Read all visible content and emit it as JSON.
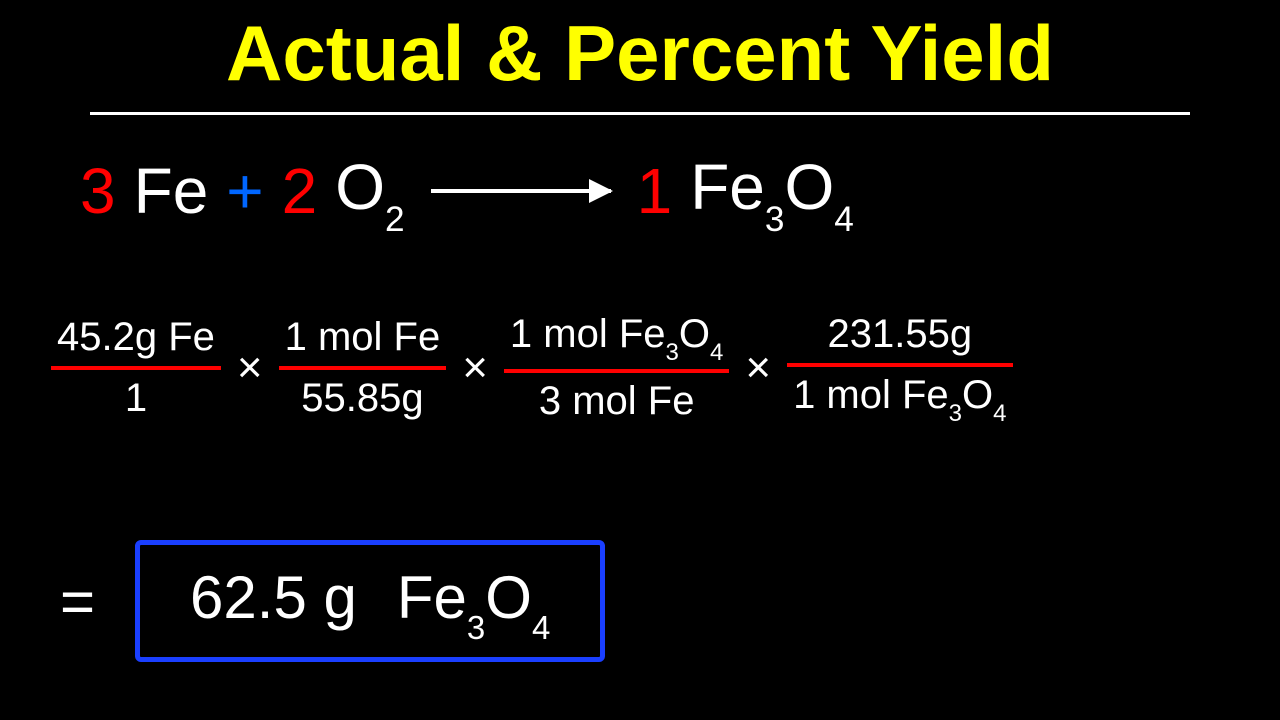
{
  "title": "Actual & Percent Yield",
  "colors": {
    "background": "#000000",
    "title": "#ffff00",
    "text": "#ffffff",
    "coefficient": "#ff0000",
    "plus": "#0066ff",
    "fraction_bar": "#ff0000",
    "result_box": "#1a3fff"
  },
  "equation": {
    "coef1": "3",
    "species1": "Fe",
    "plus": "+",
    "coef2": "2",
    "species2_base": "O",
    "species2_sub": "2",
    "coef3": "1",
    "species3_base1": "Fe",
    "species3_sub1": "3",
    "species3_base2": "O",
    "species3_sub2": "4"
  },
  "calc": {
    "f1": {
      "num": "45.2g Fe",
      "den": "1"
    },
    "f2": {
      "num": "1 mol Fe",
      "den": "55.85g"
    },
    "f3": {
      "num_a": "1 mol Fe",
      "num_s1": "3",
      "num_b": "O",
      "num_s2": "4",
      "den": "3 mol Fe"
    },
    "f4": {
      "num": "231.55g",
      "den_a": "1 mol Fe",
      "den_s1": "3",
      "den_b": "O",
      "den_s2": "4"
    },
    "times": "×"
  },
  "result": {
    "equals": "=",
    "value": "62.5 g",
    "species_a": "Fe",
    "species_s1": "3",
    "species_b": "O",
    "species_s2": "4"
  },
  "typography": {
    "title_fontsize": 78,
    "equation_fontsize": 64,
    "calc_fontsize": 40,
    "result_fontsize": 60,
    "font_family": "Comic Sans MS"
  }
}
